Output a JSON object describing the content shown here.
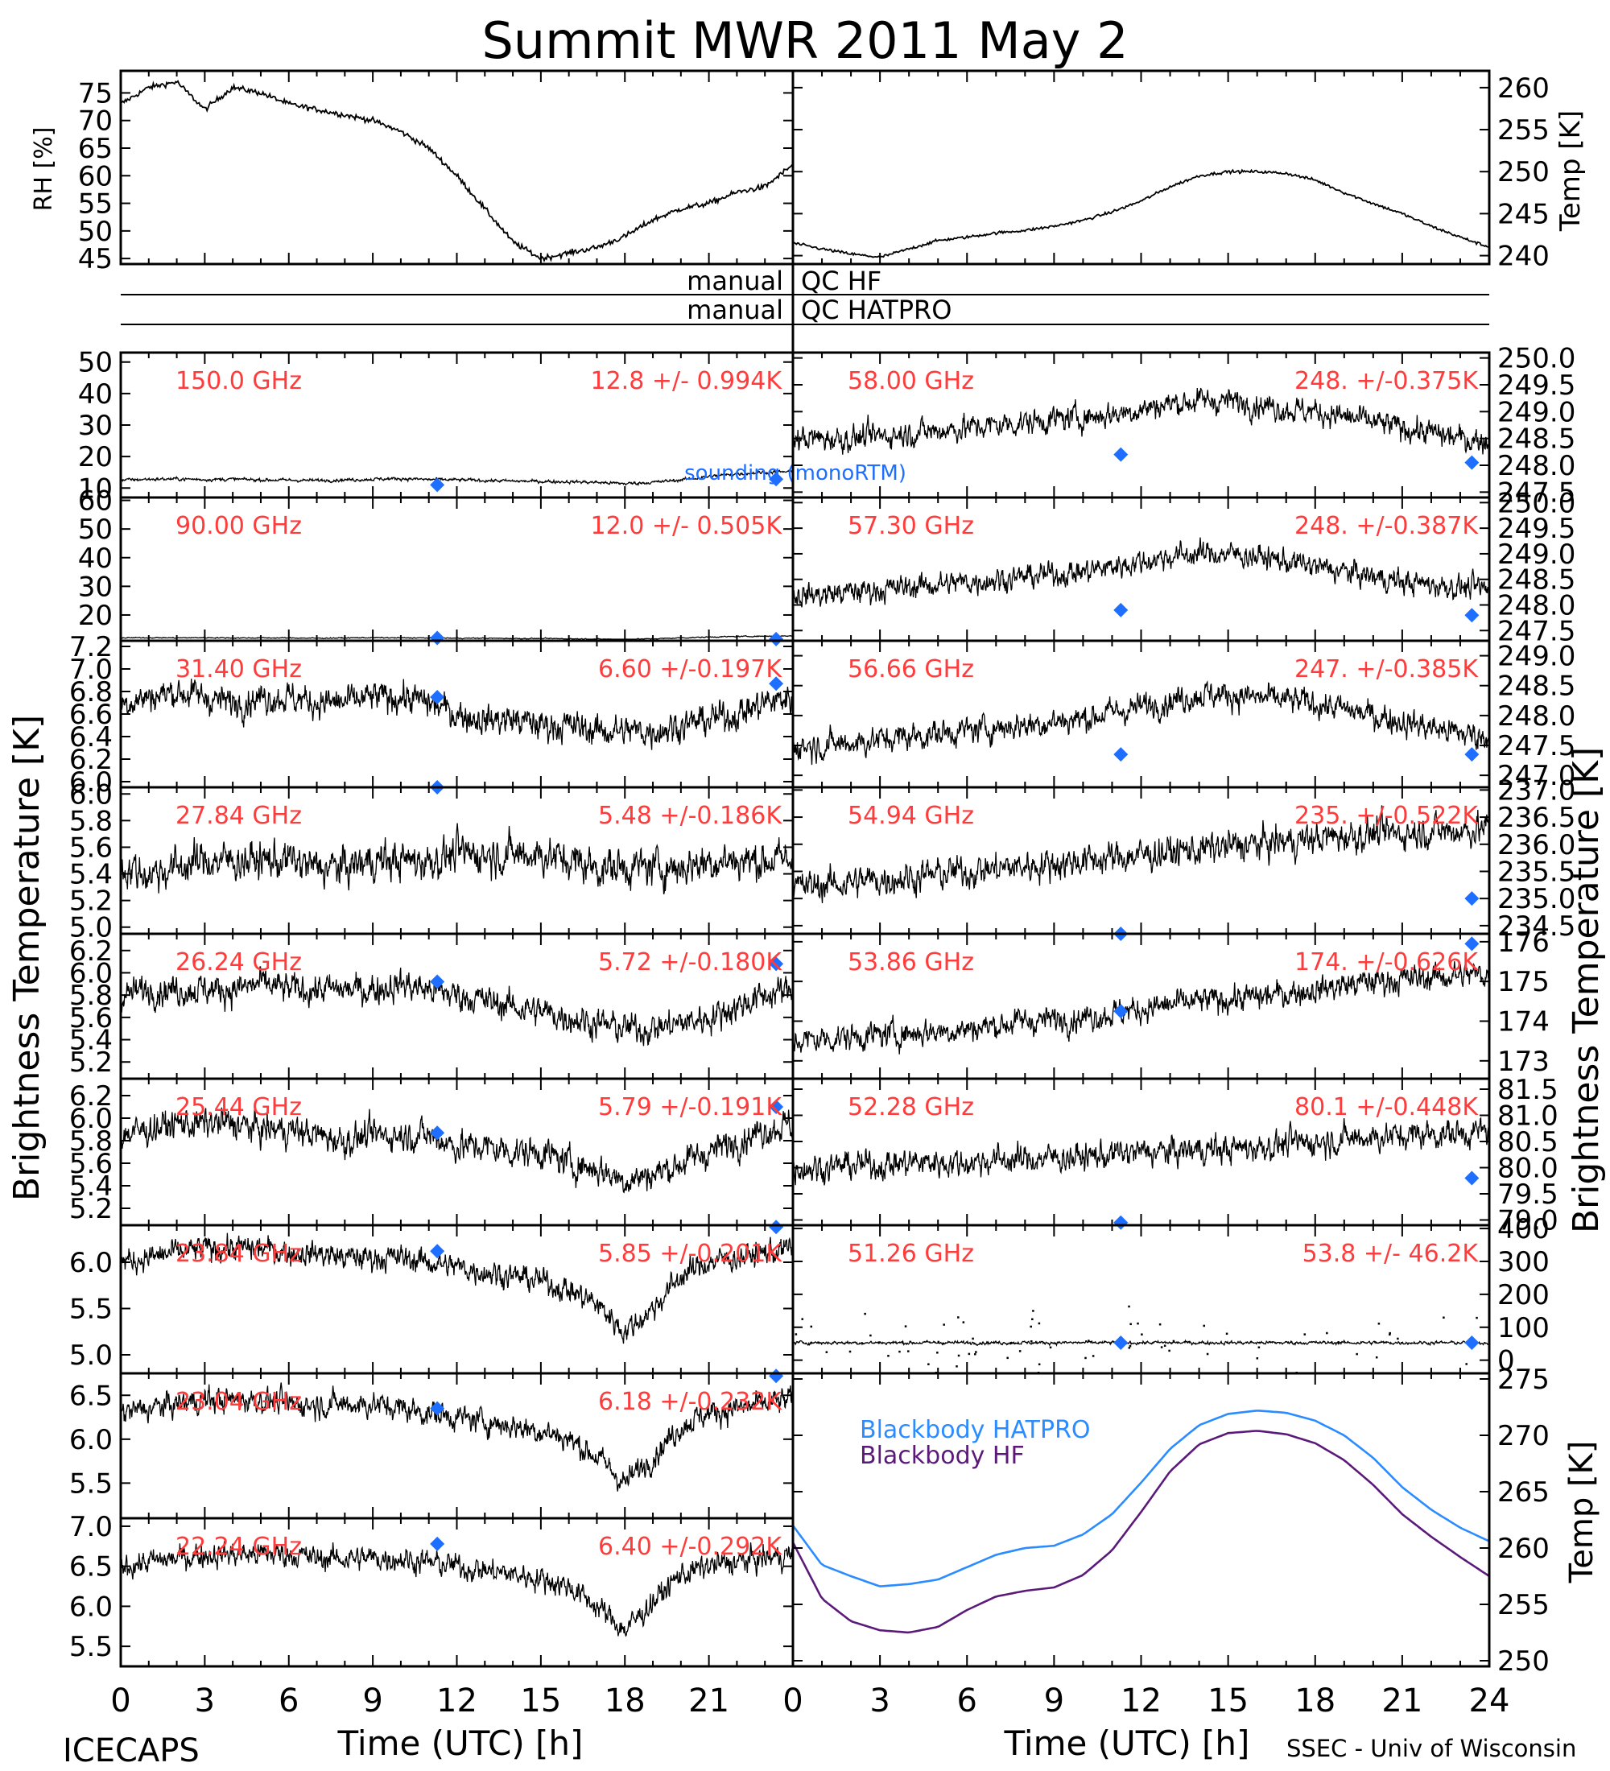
{
  "title": "Summit MWR 2011 May  2",
  "footer": {
    "left": "ICECAPS",
    "right": "SSEC - Univ of Wisconsin"
  },
  "common": {
    "xlabel": "Time (UTC) [h]",
    "xlim": [
      0,
      24
    ],
    "xticks": [
      "0",
      "3",
      "6",
      "9",
      "12",
      "15",
      "18",
      "21",
      "24"
    ],
    "ylabel_left": "Brightness Temperature [K]",
    "ylabel_right": "Brightness Temperature [K]",
    "qc_labels": {
      "hf": [
        "manual",
        "QC HF"
      ],
      "hatpro": [
        "manual",
        "QC HATPRO"
      ]
    }
  },
  "colors": {
    "axis": "#000000",
    "data": "#000000",
    "annot": "#ff3b3b",
    "sounding": "#1e6fff",
    "bb_hatpro": "#2b8cff",
    "bb_hf": "#5b1a7a"
  },
  "chart_data": [
    {
      "id": "rh",
      "type": "line",
      "ylabel": "RH [%]",
      "ylim": [
        44,
        79
      ],
      "yticks": [
        "45",
        "50",
        "55",
        "60",
        "65",
        "70",
        "75"
      ],
      "axis": "left",
      "series": [
        {
          "x": [
            0,
            1,
            2,
            3,
            4,
            5,
            6,
            7,
            8,
            9,
            10,
            11,
            12,
            13,
            14,
            15,
            16,
            17,
            18,
            19,
            20,
            21,
            22,
            23,
            24
          ],
          "y": [
            73,
            76,
            77,
            72,
            76,
            75,
            73,
            72,
            71,
            70,
            68,
            65,
            60,
            54,
            48,
            45,
            46,
            47,
            49,
            52,
            54,
            55,
            57,
            58,
            62
          ]
        }
      ]
    },
    {
      "id": "temp",
      "type": "line",
      "ylabel": "Temp [K]",
      "ylim": [
        239,
        262
      ],
      "yticks": [
        "240",
        "245",
        "250",
        "255",
        "260"
      ],
      "axis": "right",
      "series": [
        {
          "x": [
            0,
            1,
            2,
            3,
            4,
            5,
            6,
            7,
            8,
            9,
            10,
            11,
            12,
            13,
            14,
            15,
            16,
            17,
            18,
            19,
            20,
            21,
            22,
            23,
            24
          ],
          "y": [
            241.5,
            240.8,
            240.2,
            239.8,
            240.8,
            241.8,
            242.2,
            242.7,
            243,
            243.5,
            244.2,
            245.2,
            246.5,
            248.2,
            249.5,
            250,
            250,
            249.8,
            249,
            247.5,
            246.2,
            245,
            243.5,
            242.2,
            241
          ]
        }
      ]
    },
    {
      "id": "c150",
      "type": "scatter",
      "side": "left",
      "freq": "150.0 GHz",
      "stat": "12.8 +/- 0.994K",
      "ylim": [
        7,
        53
      ],
      "yticks": [
        "10",
        "20",
        "30",
        "40",
        "50"
      ],
      "base": [
        12.5,
        12.8,
        12.9,
        12.7,
        12.8,
        12.6,
        12.5,
        12.4,
        12.6,
        12.8,
        13.0,
        12.7,
        12.6,
        12.4,
        12.2,
        12.1,
        12.0,
        11.8,
        11.4,
        11.8,
        12.6,
        13.6,
        14.5,
        15.0,
        15.2
      ],
      "noise": 0.6,
      "sounding": {
        "x": [
          11.3,
          23.4
        ],
        "y": [
          11,
          12.8
        ]
      },
      "legend": "sounding (monoRTM)"
    },
    {
      "id": "c90",
      "type": "scatter",
      "side": "left",
      "freq": "90.00 GHz",
      "stat": "12.0 +/- 0.505K",
      "ylim": [
        11,
        61
      ],
      "yticks": [
        "20",
        "30",
        "40",
        "50",
        "60"
      ],
      "base": [
        12.0,
        12.1,
        12.0,
        12.1,
        12.0,
        12.0,
        12.0,
        11.9,
        12.0,
        12.1,
        12.0,
        12.0,
        11.9,
        11.9,
        11.8,
        11.8,
        11.7,
        11.6,
        11.5,
        11.7,
        12.0,
        12.3,
        12.5,
        12.6,
        12.7
      ],
      "noise": 0.2,
      "sounding": {
        "x": [
          11.3,
          23.4
        ],
        "y": [
          12.0,
          11.6
        ]
      }
    },
    {
      "id": "c3140",
      "type": "scatter",
      "side": "left",
      "freq": "31.40 GHz",
      "stat": "6.60 +/-0.197K",
      "ylim": [
        5.95,
        7.25
      ],
      "yticks": [
        "6.0",
        "6.2",
        "6.4",
        "6.6",
        "6.8",
        "7.0",
        "7.2"
      ],
      "base": [
        6.7,
        6.75,
        6.8,
        6.75,
        6.7,
        6.75,
        6.75,
        6.7,
        6.7,
        6.75,
        6.75,
        6.7,
        6.6,
        6.55,
        6.55,
        6.5,
        6.5,
        6.45,
        6.45,
        6.45,
        6.5,
        6.55,
        6.6,
        6.7,
        6.75
      ],
      "noise": 0.16,
      "sounding": {
        "x": [
          11.3,
          23.4
        ],
        "y": [
          6.75,
          6.87
        ]
      }
    },
    {
      "id": "c2784",
      "type": "scatter",
      "side": "left",
      "freq": "27.84 GHz",
      "stat": "5.48 +/-0.186K",
      "ylim": [
        4.95,
        6.05
      ],
      "yticks": [
        "5.0",
        "5.2",
        "5.4",
        "5.6",
        "5.8",
        "6.0"
      ],
      "base": [
        5.45,
        5.4,
        5.45,
        5.5,
        5.5,
        5.5,
        5.5,
        5.45,
        5.45,
        5.5,
        5.5,
        5.5,
        5.55,
        5.55,
        5.55,
        5.55,
        5.5,
        5.45,
        5.45,
        5.45,
        5.45,
        5.5,
        5.5,
        5.5,
        5.5
      ],
      "noise": 0.17,
      "sounding": {
        "x": [
          11.3
        ],
        "y": [
          6.05
        ]
      }
    },
    {
      "id": "c2624",
      "type": "scatter",
      "side": "left",
      "freq": "26.24 GHz",
      "stat": "5.72 +/-0.180K",
      "ylim": [
        5.05,
        6.35
      ],
      "yticks": [
        "5.2",
        "5.4",
        "5.6",
        "5.8",
        "6.0",
        "6.2"
      ],
      "base": [
        5.8,
        5.85,
        5.85,
        5.85,
        5.85,
        5.9,
        5.85,
        5.85,
        5.85,
        5.85,
        5.9,
        5.85,
        5.8,
        5.75,
        5.7,
        5.65,
        5.6,
        5.55,
        5.5,
        5.5,
        5.55,
        5.6,
        5.7,
        5.8,
        5.85
      ],
      "noise": 0.16,
      "sounding": {
        "x": [
          11.3,
          23.4
        ],
        "y": [
          5.92,
          6.08
        ]
      }
    },
    {
      "id": "c2544",
      "type": "scatter",
      "side": "left",
      "freq": "25.44 GHz",
      "stat": "5.79 +/-0.191K",
      "ylim": [
        5.05,
        6.35
      ],
      "yticks": [
        "5.2",
        "5.4",
        "5.6",
        "5.8",
        "6.0",
        "6.2"
      ],
      "base": [
        5.85,
        5.9,
        5.95,
        5.95,
        5.95,
        5.9,
        5.9,
        5.85,
        5.8,
        5.85,
        5.85,
        5.85,
        5.75,
        5.75,
        5.7,
        5.7,
        5.6,
        5.55,
        5.45,
        5.5,
        5.6,
        5.7,
        5.8,
        5.9,
        5.95
      ],
      "noise": 0.16,
      "sounding": {
        "x": [
          11.3,
          23.4
        ],
        "y": [
          5.87,
          6.1
        ]
      }
    },
    {
      "id": "c2384",
      "type": "scatter",
      "side": "left",
      "freq": "23.84 GHz",
      "stat": "5.85 +/-0.201K",
      "ylim": [
        4.8,
        6.4
      ],
      "yticks": [
        "5.0",
        "5.5",
        "6.0"
      ],
      "base": [
        6.0,
        6.05,
        6.1,
        6.15,
        6.15,
        6.15,
        6.1,
        6.1,
        6.05,
        6.05,
        6.05,
        6.0,
        5.95,
        5.9,
        5.85,
        5.8,
        5.7,
        5.55,
        5.25,
        5.5,
        5.85,
        6.0,
        6.05,
        6.1,
        6.15
      ],
      "noise": 0.16,
      "sounding": {
        "x": [
          11.3,
          23.4
        ],
        "y": [
          6.12,
          6.38
        ]
      }
    },
    {
      "id": "c2304",
      "type": "scatter",
      "side": "left",
      "freq": "23.04 GHz",
      "stat": "6.18 +/-0.232K",
      "ylim": [
        5.1,
        6.75
      ],
      "yticks": [
        "5.5",
        "6.0",
        "6.5"
      ],
      "base": [
        6.3,
        6.35,
        6.4,
        6.45,
        6.45,
        6.45,
        6.4,
        6.4,
        6.4,
        6.4,
        6.35,
        6.3,
        6.25,
        6.2,
        6.15,
        6.1,
        6.0,
        5.8,
        5.5,
        5.8,
        6.15,
        6.3,
        6.35,
        6.4,
        6.45
      ],
      "noise": 0.17,
      "sounding": {
        "x": [
          11.3,
          23.4
        ],
        "y": [
          6.35,
          6.72
        ]
      }
    },
    {
      "id": "c2224",
      "type": "scatter",
      "side": "left",
      "freq": "22.24 GHz",
      "stat": "6.40 +/-0.292K",
      "ylim": [
        5.25,
        7.1
      ],
      "yticks": [
        "5.5",
        "6.0",
        "6.5",
        "7.0"
      ],
      "base": [
        6.5,
        6.55,
        6.6,
        6.65,
        6.65,
        6.65,
        6.65,
        6.6,
        6.6,
        6.6,
        6.6,
        6.55,
        6.5,
        6.45,
        6.4,
        6.35,
        6.25,
        6.0,
        5.7,
        6.05,
        6.4,
        6.5,
        6.55,
        6.6,
        6.65
      ],
      "noise": 0.18,
      "sounding": {
        "x": [
          11.3
        ],
        "y": [
          6.78
        ]
      }
    },
    {
      "id": "c5800",
      "type": "scatter",
      "side": "right",
      "freq": "58.00 GHz",
      "stat": "248. +/-0.375K",
      "ylim": [
        247.4,
        250.1
      ],
      "yticks": [
        "247.5",
        "248.0",
        "248.5",
        "249.0",
        "249.5",
        "250.0"
      ],
      "base": [
        248.5,
        248.5,
        248.5,
        248.55,
        248.6,
        248.65,
        248.7,
        248.75,
        248.8,
        248.85,
        248.9,
        248.95,
        249.05,
        249.15,
        249.2,
        249.2,
        249.15,
        249.05,
        249.0,
        248.9,
        248.8,
        248.7,
        248.6,
        248.5,
        248.45
      ],
      "noise": 0.28,
      "sounding": {
        "x": [
          11.3,
          23.4
        ],
        "y": [
          248.2,
          248.05
        ]
      }
    },
    {
      "id": "c5730",
      "type": "scatter",
      "side": "right",
      "freq": "57.30 GHz",
      "stat": "248. +/-0.387K",
      "ylim": [
        247.3,
        250.1
      ],
      "yticks": [
        "247.5",
        "248.0",
        "248.5",
        "249.0",
        "249.5",
        "250.0"
      ],
      "base": [
        248.2,
        248.2,
        248.25,
        248.3,
        248.35,
        248.4,
        248.45,
        248.5,
        248.55,
        248.6,
        248.65,
        248.75,
        248.85,
        248.95,
        249.0,
        249.0,
        248.95,
        248.85,
        248.75,
        248.65,
        248.55,
        248.45,
        248.4,
        248.35,
        248.3
      ],
      "noise": 0.28,
      "sounding": {
        "x": [
          11.3,
          23.4
        ],
        "y": [
          247.9,
          247.8
        ]
      }
    },
    {
      "id": "c5666",
      "type": "scatter",
      "side": "right",
      "freq": "56.66 GHz",
      "stat": "247. +/-0.385K",
      "ylim": [
        246.8,
        249.25
      ],
      "yticks": [
        "247.0",
        "247.5",
        "248.0",
        "248.5",
        "249.0"
      ],
      "base": [
        247.5,
        247.5,
        247.55,
        247.6,
        247.65,
        247.7,
        247.75,
        247.8,
        247.85,
        247.9,
        247.95,
        248.05,
        248.15,
        248.25,
        248.35,
        248.35,
        248.3,
        248.25,
        248.2,
        248.1,
        248.0,
        247.9,
        247.8,
        247.7,
        247.65
      ],
      "noise": 0.27,
      "sounding": {
        "x": [
          11.3,
          23.4
        ],
        "y": [
          247.35,
          247.35
        ]
      }
    },
    {
      "id": "c5494",
      "type": "scatter",
      "side": "right",
      "freq": "54.94 GHz",
      "stat": "235. +/-0.522K",
      "ylim": [
        234.35,
        237.05
      ],
      "yticks": [
        "234.5",
        "235.0",
        "235.5",
        "236.0",
        "236.5",
        "237.0"
      ],
      "base": [
        235.2,
        235.25,
        235.3,
        235.35,
        235.4,
        235.45,
        235.5,
        235.55,
        235.6,
        235.65,
        235.7,
        235.75,
        235.8,
        235.85,
        235.9,
        235.95,
        236.0,
        236.05,
        236.1,
        236.15,
        236.2,
        236.2,
        236.25,
        236.25,
        236.3
      ],
      "noise": 0.35,
      "sounding": {
        "x": [
          11.3,
          23.4
        ],
        "y": [
          234.35,
          235.0
        ]
      }
    },
    {
      "id": "c5386",
      "type": "scatter",
      "side": "right",
      "freq": "53.86 GHz",
      "stat": "174. +/-0.626K",
      "ylim": [
        172.55,
        176.2
      ],
      "yticks": [
        "173",
        "174",
        "175",
        "176"
      ],
      "base": [
        173.5,
        173.55,
        173.6,
        173.65,
        173.7,
        173.75,
        173.8,
        173.9,
        174.0,
        174.05,
        174.1,
        174.2,
        174.3,
        174.4,
        174.5,
        174.55,
        174.6,
        174.7,
        174.8,
        174.9,
        175.0,
        175.05,
        175.1,
        175.15,
        175.2
      ],
      "noise": 0.4,
      "sounding": {
        "x": [
          11.3,
          23.4
        ],
        "y": [
          174.25,
          175.95
        ]
      }
    },
    {
      "id": "c5228",
      "type": "scatter",
      "side": "right",
      "freq": "52.28 GHz",
      "stat": "80.1 +/-0.448K",
      "ylim": [
        78.9,
        81.7
      ],
      "yticks": [
        "79.0",
        "79.5",
        "80.0",
        "80.5",
        "81.0",
        "81.5"
      ],
      "base": [
        80.0,
        80.0,
        80.05,
        80.05,
        80.1,
        80.1,
        80.1,
        80.15,
        80.15,
        80.2,
        80.2,
        80.25,
        80.3,
        80.3,
        80.35,
        80.35,
        80.4,
        80.45,
        80.5,
        80.55,
        80.6,
        80.6,
        80.65,
        80.65,
        80.7
      ],
      "noise": 0.32,
      "sounding": {
        "x": [
          11.3,
          23.4
        ],
        "y": [
          78.95,
          79.8
        ]
      }
    },
    {
      "id": "c5126",
      "type": "scatter",
      "side": "right",
      "freq": "51.26 GHz",
      "stat": "53.8 +/- 46.2K",
      "ylim": [
        -40,
        410
      ],
      "yticks": [
        "0",
        "100",
        "200",
        "300",
        "400"
      ],
      "base": [
        53,
        53,
        53,
        53,
        53,
        53,
        53,
        53,
        53,
        53,
        53,
        53,
        53,
        53,
        53,
        53,
        53,
        53,
        53,
        53,
        53,
        53,
        53,
        53,
        53
      ],
      "noise": 6,
      "outliers": true,
      "sounding": {
        "x": [
          11.3,
          23.4
        ],
        "y": [
          53,
          53
        ]
      }
    },
    {
      "id": "bb",
      "type": "line",
      "side": "right",
      "ylabel": "Temp [K]",
      "ylim": [
        249.5,
        275.5
      ],
      "yticks": [
        "250",
        "255",
        "260",
        "265",
        "270",
        "275"
      ],
      "series": [
        {
          "name": "Blackbody HATPRO",
          "color": "#2b8cff",
          "x": [
            0,
            1,
            2,
            3,
            4,
            5,
            6,
            7,
            8,
            9,
            10,
            11,
            12,
            13,
            14,
            15,
            16,
            17,
            18,
            19,
            20,
            21,
            22,
            23,
            24
          ],
          "y": [
            262,
            258.5,
            257.5,
            256.6,
            256.8,
            257.2,
            258.3,
            259.4,
            260,
            260.2,
            261.2,
            263.0,
            265.8,
            268.8,
            270.9,
            271.9,
            272.2,
            272.0,
            271.3,
            270.0,
            268.0,
            265.4,
            263.4,
            261.8,
            260.6
          ]
        },
        {
          "name": "Blackbody HF",
          "color": "#5b1a7a",
          "x": [
            0,
            1,
            2,
            3,
            4,
            5,
            6,
            7,
            8,
            9,
            10,
            11,
            12,
            13,
            14,
            15,
            16,
            17,
            18,
            19,
            20,
            21,
            22,
            23,
            24
          ],
          "y": [
            260.5,
            255.5,
            253.5,
            252.7,
            252.5,
            253.0,
            254.5,
            255.7,
            256.2,
            256.5,
            257.6,
            259.8,
            263.2,
            266.8,
            269.2,
            270.2,
            270.4,
            270.1,
            269.3,
            267.8,
            265.6,
            263.0,
            261.0,
            259.2,
            257.5
          ]
        }
      ]
    }
  ]
}
